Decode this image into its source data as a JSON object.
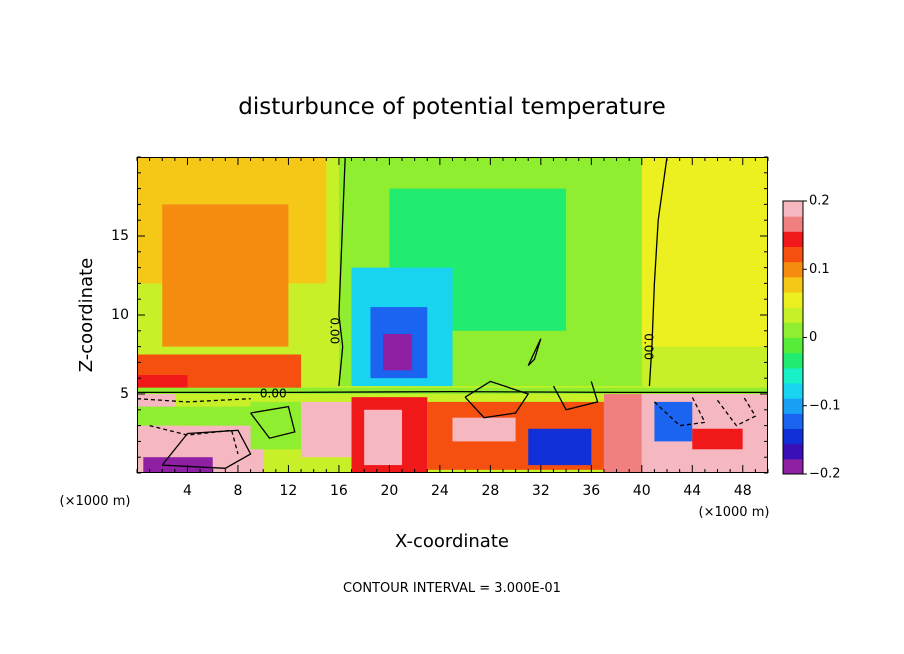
{
  "chart_data": {
    "type": "heatmap",
    "title": "disturbunce of potential temperature",
    "xlabel": "X-coordinate",
    "ylabel": "Z-coordinate",
    "x_unit_left": "(×1000 m)",
    "x_unit_right": "(×1000 m)",
    "xlim": [
      0,
      50
    ],
    "ylim": [
      0,
      20
    ],
    "x_ticks": [
      4,
      8,
      12,
      16,
      20,
      24,
      28,
      32,
      36,
      40,
      44,
      48
    ],
    "y_ticks": [
      5,
      10,
      15
    ],
    "colorbar": {
      "min": -0.2,
      "max": 0.2,
      "tick_labels": [
        {
          "value": 0.2,
          "label": "0.2"
        },
        {
          "value": 0.1,
          "label": "0.1"
        },
        {
          "value": 0,
          "label": "0"
        },
        {
          "value": -0.1,
          "label": "−0.1"
        },
        {
          "value": -0.2,
          "label": "−0.2"
        }
      ],
      "colors": [
        "#8f1fa3",
        "#3b0fb8",
        "#1230d8",
        "#1a64f0",
        "#1aa0f5",
        "#18d4f0",
        "#18f0c8",
        "#22ec70",
        "#58ec3a",
        "#90ee30",
        "#c8f028",
        "#ecf020",
        "#f5c818",
        "#f58c10",
        "#f55010",
        "#f01818",
        "#f08080",
        "#f5b8c0"
      ]
    },
    "contour_interval": "CONTOUR INTERVAL = 3.000E-01",
    "contour_labels": [
      {
        "x": 10.8,
        "y": 5.0,
        "text": "0.00",
        "rotate": 0
      },
      {
        "x": 15.6,
        "y": 9.0,
        "text": "0.00",
        "rotate": 90
      },
      {
        "x": 40.5,
        "y": 8.0,
        "text": "0.00",
        "rotate": 90
      }
    ],
    "regions": [
      {
        "x0": 0,
        "x1": 50,
        "y0": 0,
        "y1": 20,
        "value": 0.04
      },
      {
        "x0": 0,
        "x1": 15,
        "y0": 12,
        "y1": 20,
        "value": 0.07
      },
      {
        "x0": 40,
        "x1": 50,
        "y0": 8,
        "y1": 20,
        "value": 0.06
      },
      {
        "x0": 2,
        "x1": 12,
        "y0": 8,
        "y1": 17,
        "value": 0.09
      },
      {
        "x0": 3,
        "x1": 9,
        "y0": 11,
        "y1": 16,
        "value": 0.11
      },
      {
        "x0": 0,
        "x1": 13,
        "y0": 5.3,
        "y1": 7.5,
        "value": 0.12
      },
      {
        "x0": 0,
        "x1": 4,
        "y0": 5.4,
        "y1": 6.2,
        "value": 0.15
      },
      {
        "x0": 16,
        "x1": 40,
        "y0": 5.5,
        "y1": 20,
        "value": 0.01
      },
      {
        "x0": 20,
        "x1": 34,
        "y0": 9,
        "y1": 18,
        "value": -0.03
      },
      {
        "x0": 17,
        "x1": 25,
        "y0": 5.5,
        "y1": 13,
        "value": -0.08
      },
      {
        "x0": 18.5,
        "x1": 23,
        "y0": 6,
        "y1": 10.5,
        "value": -0.13
      },
      {
        "x0": 19.5,
        "x1": 21.8,
        "y0": 6.5,
        "y1": 8.8,
        "value": -0.18
      },
      {
        "x0": 0,
        "x1": 50,
        "y0": 5.0,
        "y1": 5.4,
        "value": 0.0
      },
      {
        "x0": 0,
        "x1": 3,
        "y0": 0,
        "y1": 5,
        "value": 0.18
      },
      {
        "x0": 0,
        "x1": 10,
        "y0": 0,
        "y1": 3,
        "value": 0.2
      },
      {
        "x0": 0,
        "x1": 10,
        "y0": 3,
        "y1": 4.2,
        "value": 0.0
      },
      {
        "x0": 0.5,
        "x1": 6,
        "y0": 0,
        "y1": 1,
        "value": -0.19
      },
      {
        "x0": 9,
        "x1": 13,
        "y0": 1.5,
        "y1": 4.5,
        "value": 0.02
      },
      {
        "x0": 13,
        "x1": 17,
        "y0": 1,
        "y1": 4.5,
        "value": 0.2
      },
      {
        "x0": 17,
        "x1": 23,
        "y0": 0,
        "y1": 4.8,
        "value": 0.15
      },
      {
        "x0": 18,
        "x1": 21,
        "y0": 0.5,
        "y1": 4,
        "value": 0.2
      },
      {
        "x0": 23,
        "x1": 37,
        "y0": 0.2,
        "y1": 4.5,
        "value": 0.12
      },
      {
        "x0": 25,
        "x1": 30,
        "y0": 2,
        "y1": 3.5,
        "value": 0.19
      },
      {
        "x0": 31,
        "x1": 36,
        "y0": 0.5,
        "y1": 2.8,
        "value": -0.15
      },
      {
        "x0": 37,
        "x1": 40,
        "y0": 0,
        "y1": 5,
        "value": 0.16
      },
      {
        "x0": 40,
        "x1": 50,
        "y0": 0,
        "y1": 5,
        "value": 0.2
      },
      {
        "x0": 41,
        "x1": 44,
        "y0": 2,
        "y1": 4.5,
        "value": -0.12
      },
      {
        "x0": 44,
        "x1": 48,
        "y0": 1.5,
        "y1": 2.8,
        "value": 0.15
      },
      {
        "x0": 48,
        "x1": 50,
        "y0": 0,
        "y1": 5,
        "value": 0.18
      }
    ],
    "contour_lines": [
      {
        "style": "solid",
        "points": [
          [
            16,
            5.5
          ],
          [
            16.3,
            8
          ],
          [
            16,
            10
          ],
          [
            16.2,
            14
          ],
          [
            16.5,
            20
          ]
        ]
      },
      {
        "style": "solid",
        "points": [
          [
            40.6,
            5.5
          ],
          [
            40.8,
            8
          ],
          [
            41,
            12
          ],
          [
            41.3,
            16
          ],
          [
            42,
            20
          ]
        ]
      },
      {
        "style": "solid",
        "points": [
          [
            0,
            5.1
          ],
          [
            12,
            5.1
          ],
          [
            25,
            5.15
          ],
          [
            38,
            5.1
          ],
          [
            50,
            5.1
          ]
        ]
      },
      {
        "style": "solid",
        "points": [
          [
            31,
            6.8
          ],
          [
            32,
            8.5
          ],
          [
            31.5,
            7.2
          ],
          [
            31,
            6.8
          ]
        ]
      },
      {
        "style": "solid",
        "points": [
          [
            9,
            3.8
          ],
          [
            10.5,
            2.2
          ],
          [
            12.5,
            2.6
          ],
          [
            12,
            4.2
          ],
          [
            9,
            3.8
          ]
        ]
      },
      {
        "style": "solid",
        "points": [
          [
            2,
            0.5
          ],
          [
            4,
            2.5
          ],
          [
            8,
            2.7
          ],
          [
            9,
            1.2
          ],
          [
            7,
            0.3
          ],
          [
            2,
            0.5
          ]
        ]
      },
      {
        "style": "dashed",
        "points": [
          [
            0,
            4.7
          ],
          [
            4,
            4.5
          ],
          [
            9,
            4.7
          ]
        ]
      },
      {
        "style": "dashed",
        "points": [
          [
            1,
            3
          ],
          [
            4,
            2.4
          ],
          [
            7.5,
            2.7
          ],
          [
            8,
            1.2
          ]
        ]
      },
      {
        "style": "dashed",
        "points": [
          [
            41,
            4.5
          ],
          [
            43,
            3
          ],
          [
            45,
            3.2
          ],
          [
            44,
            4.8
          ]
        ]
      },
      {
        "style": "dashed",
        "points": [
          [
            46,
            4.6
          ],
          [
            47.5,
            3
          ],
          [
            49,
            3.6
          ],
          [
            48,
            4.9
          ]
        ]
      },
      {
        "style": "solid",
        "points": [
          [
            26,
            4.8
          ],
          [
            27.5,
            3.5
          ],
          [
            30,
            3.8
          ],
          [
            31,
            5
          ],
          [
            28,
            5.8
          ],
          [
            26,
            4.8
          ]
        ]
      },
      {
        "style": "solid",
        "points": [
          [
            33,
            5.5
          ],
          [
            34,
            4
          ],
          [
            36.5,
            4.5
          ],
          [
            36,
            5.8
          ]
        ]
      }
    ]
  }
}
